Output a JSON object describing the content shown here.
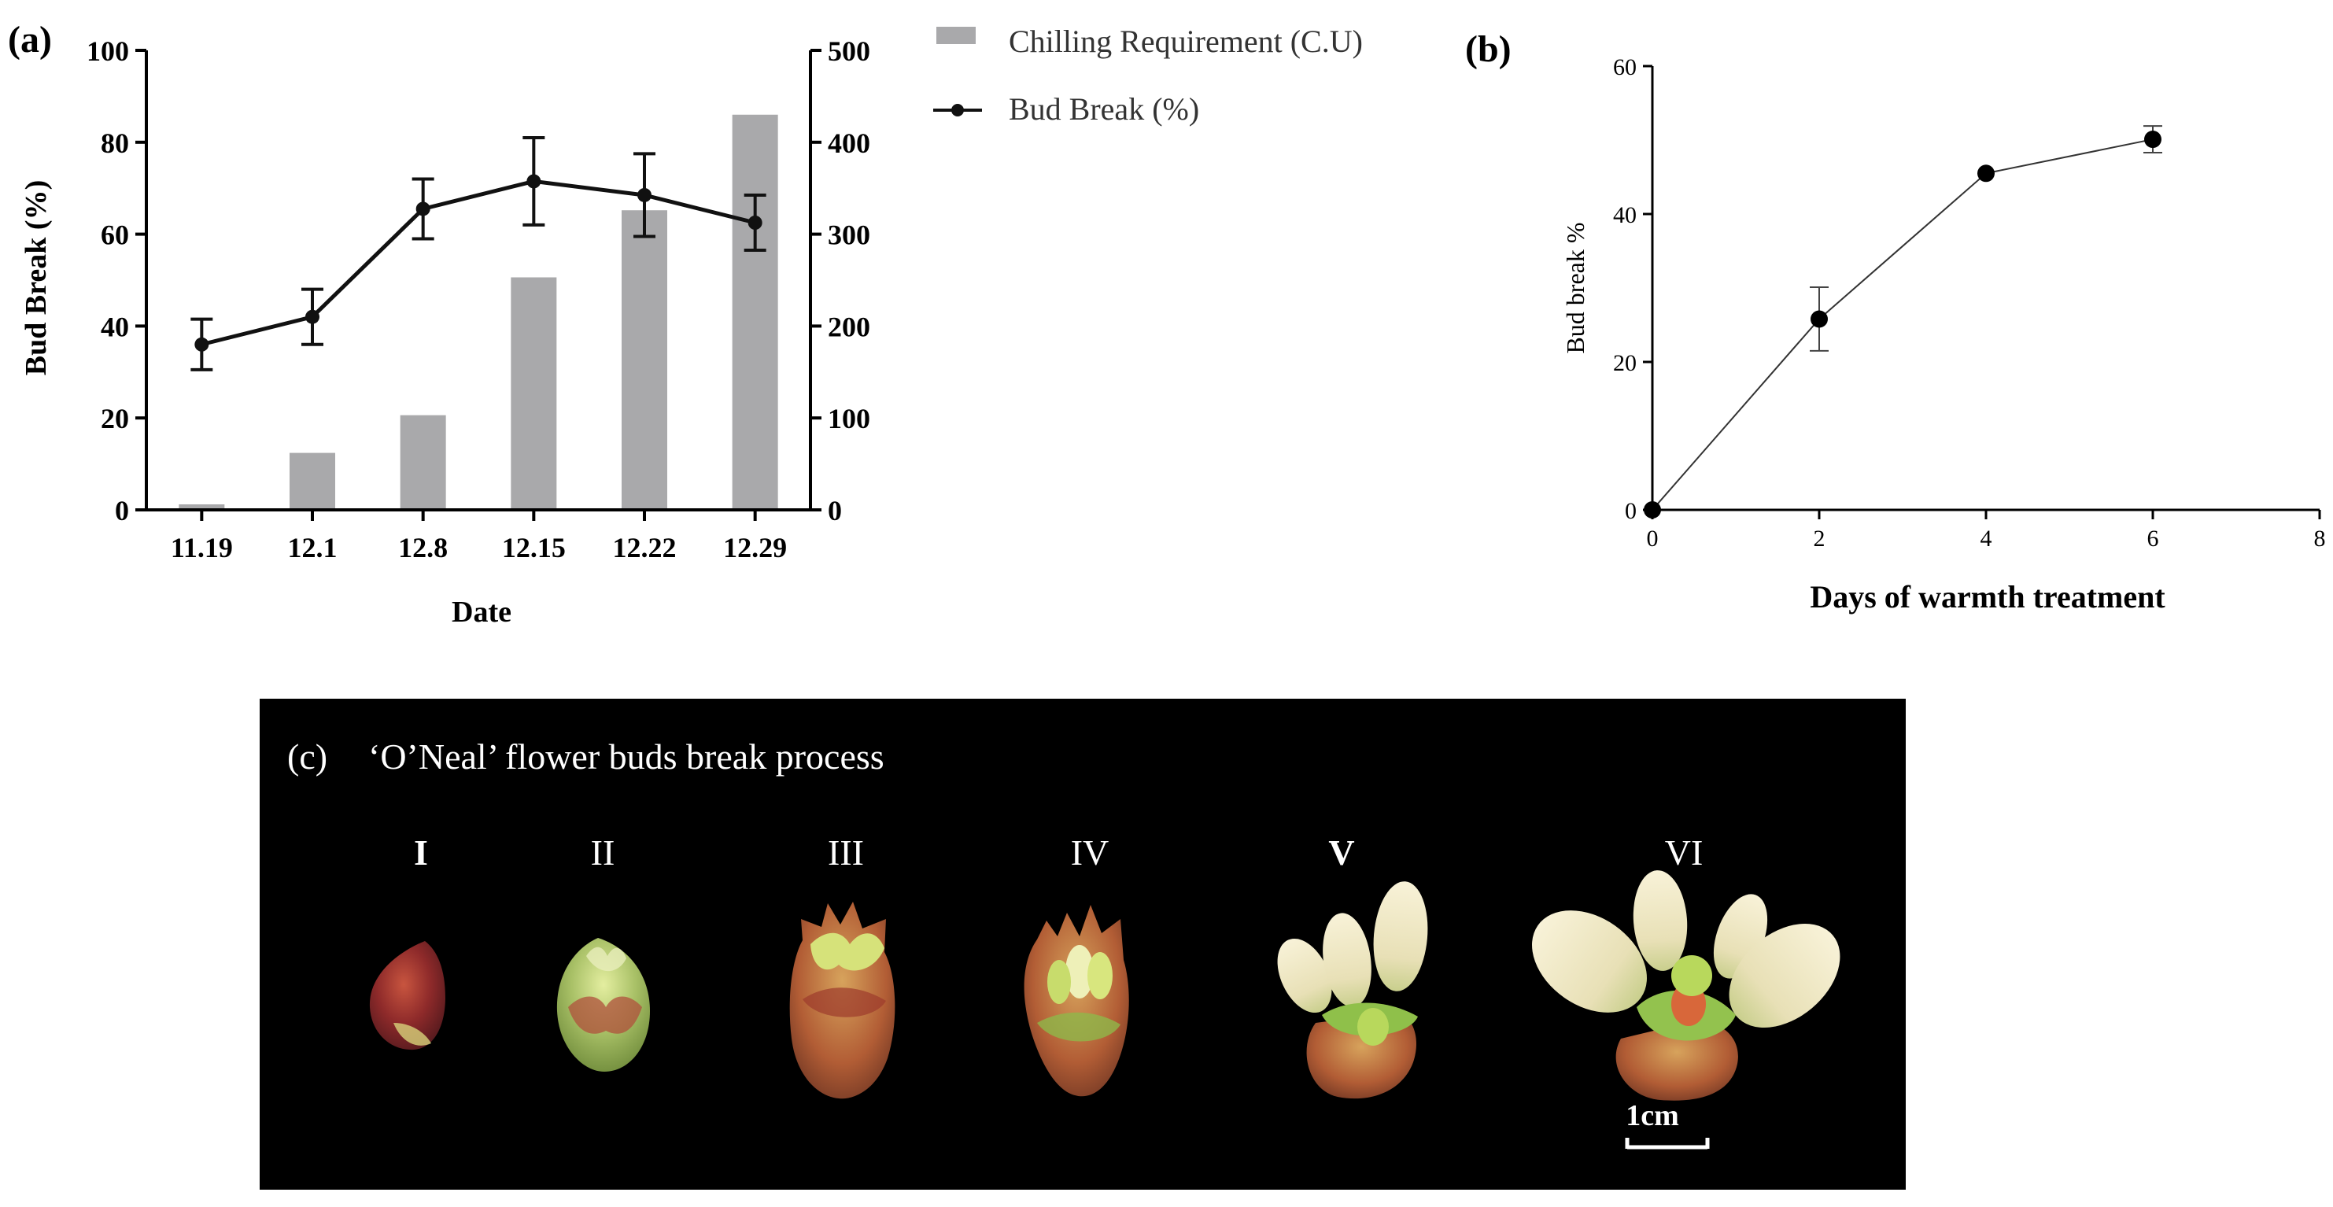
{
  "panel_a": {
    "label": "(a)"
  },
  "panel_b": {
    "label": "(b)"
  },
  "panel_c": {
    "label": "(c)",
    "title": "‘O’Neal’ flower buds break process",
    "stages": [
      "I",
      "II",
      "III",
      "IV",
      "V",
      "VI"
    ],
    "scale_label": "1cm",
    "background_color": "#000000"
  },
  "colors": {
    "bar": "#a9a9ab",
    "line": "#111111",
    "axis": "#000000"
  },
  "chart_data": [
    {
      "type": "bar+line",
      "title": "",
      "xlabel": "Date",
      "ylabel": "Bud Break (%)",
      "y2label": "",
      "categories": [
        "11.19",
        "12.1",
        "12.8",
        "12.15",
        "12.22",
        "12.29"
      ],
      "ylim": [
        0,
        100
      ],
      "yticks": [
        0,
        20,
        40,
        60,
        80,
        100
      ],
      "y2lim": [
        0,
        500
      ],
      "y2ticks": [
        0,
        100,
        200,
        300,
        400,
        500
      ],
      "series": [
        {
          "name": "Chilling Requirement (C.U)",
          "kind": "bar",
          "axis": "right",
          "values": [
            6,
            62,
            103,
            253,
            326,
            430
          ]
        },
        {
          "name": "Bud Break (%)",
          "kind": "line",
          "axis": "left",
          "values": [
            36,
            42,
            65.5,
            71.5,
            68.5,
            62.5
          ],
          "errors": [
            5.5,
            6,
            6.5,
            9.5,
            9,
            6
          ]
        }
      ],
      "legend": "top-right"
    },
    {
      "type": "line",
      "title": "",
      "xlabel": "Days of warmth treatment",
      "ylabel": "Bud break %",
      "xlim": [
        0,
        8
      ],
      "xticks": [
        0,
        2,
        4,
        6,
        8
      ],
      "ylim": [
        0,
        60
      ],
      "yticks": [
        0,
        20,
        40,
        60
      ],
      "series": [
        {
          "name": "Bud break",
          "x": [
            0,
            2,
            4,
            6
          ],
          "values": [
            0,
            25.8,
            45.5,
            50.1
          ],
          "errors": [
            0,
            4.3,
            0,
            1.8
          ]
        }
      ]
    }
  ]
}
